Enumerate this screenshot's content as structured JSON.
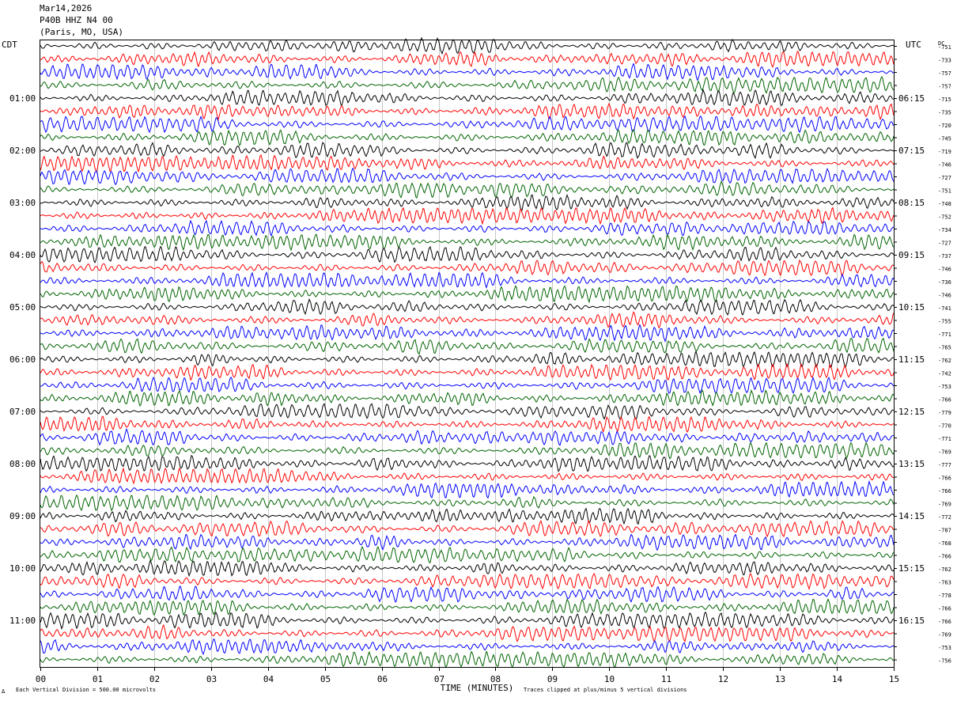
{
  "header": {
    "date": "Mar14,2026",
    "station": "P40B HHZ N4 00",
    "location": "(Paris, MO, USA)"
  },
  "footer": {
    "left_mark": "Δ",
    "vertical_division": "Each Vertical Division =  500.00 microvolts",
    "clip_note": "Traces clipped at plus/minus 5 vertical divisions"
  },
  "chart_data": {
    "type": "line",
    "title": "",
    "xlabel": "TIME (MINUTES)",
    "ylabel": "",
    "x_ticks": [
      "00",
      "01",
      "02",
      "03",
      "04",
      "05",
      "06",
      "07",
      "08",
      "09",
      "10",
      "11",
      "12",
      "13",
      "14",
      "15"
    ],
    "xlim": [
      0,
      15
    ],
    "left_axis_label": "CDT",
    "right_axis_label": "UTC",
    "dc_label": "DC",
    "left_hour_labels": [
      "01:00",
      "02:00",
      "03:00",
      "04:00",
      "05:00",
      "06:00",
      "07:00",
      "08:00",
      "09:00",
      "10:00",
      "11:00"
    ],
    "right_hour_labels": [
      "06:15",
      "07:15",
      "08:15",
      "09:15",
      "10:15",
      "11:15",
      "12:15",
      "13:15",
      "14:15",
      "15:15",
      "16:15"
    ],
    "trace_colors": [
      "#000000",
      "#ff0000",
      "#0000ff",
      "#006400"
    ],
    "dc_offsets": [
      -751,
      -733,
      -757,
      -757,
      -715,
      -735,
      -720,
      -745,
      -719,
      -746,
      -727,
      -751,
      -748,
      -752,
      -734,
      -727,
      -737,
      -746,
      -736,
      -746,
      -741,
      -755,
      -771,
      -765,
      -762,
      -742,
      -753,
      -766,
      -779,
      -770,
      -771,
      -769,
      -777,
      -766,
      -766,
      -769,
      -772,
      -787,
      -768,
      -766,
      -762,
      -763,
      -778,
      -766,
      -766,
      -769,
      -753,
      -756
    ],
    "grid": true
  }
}
